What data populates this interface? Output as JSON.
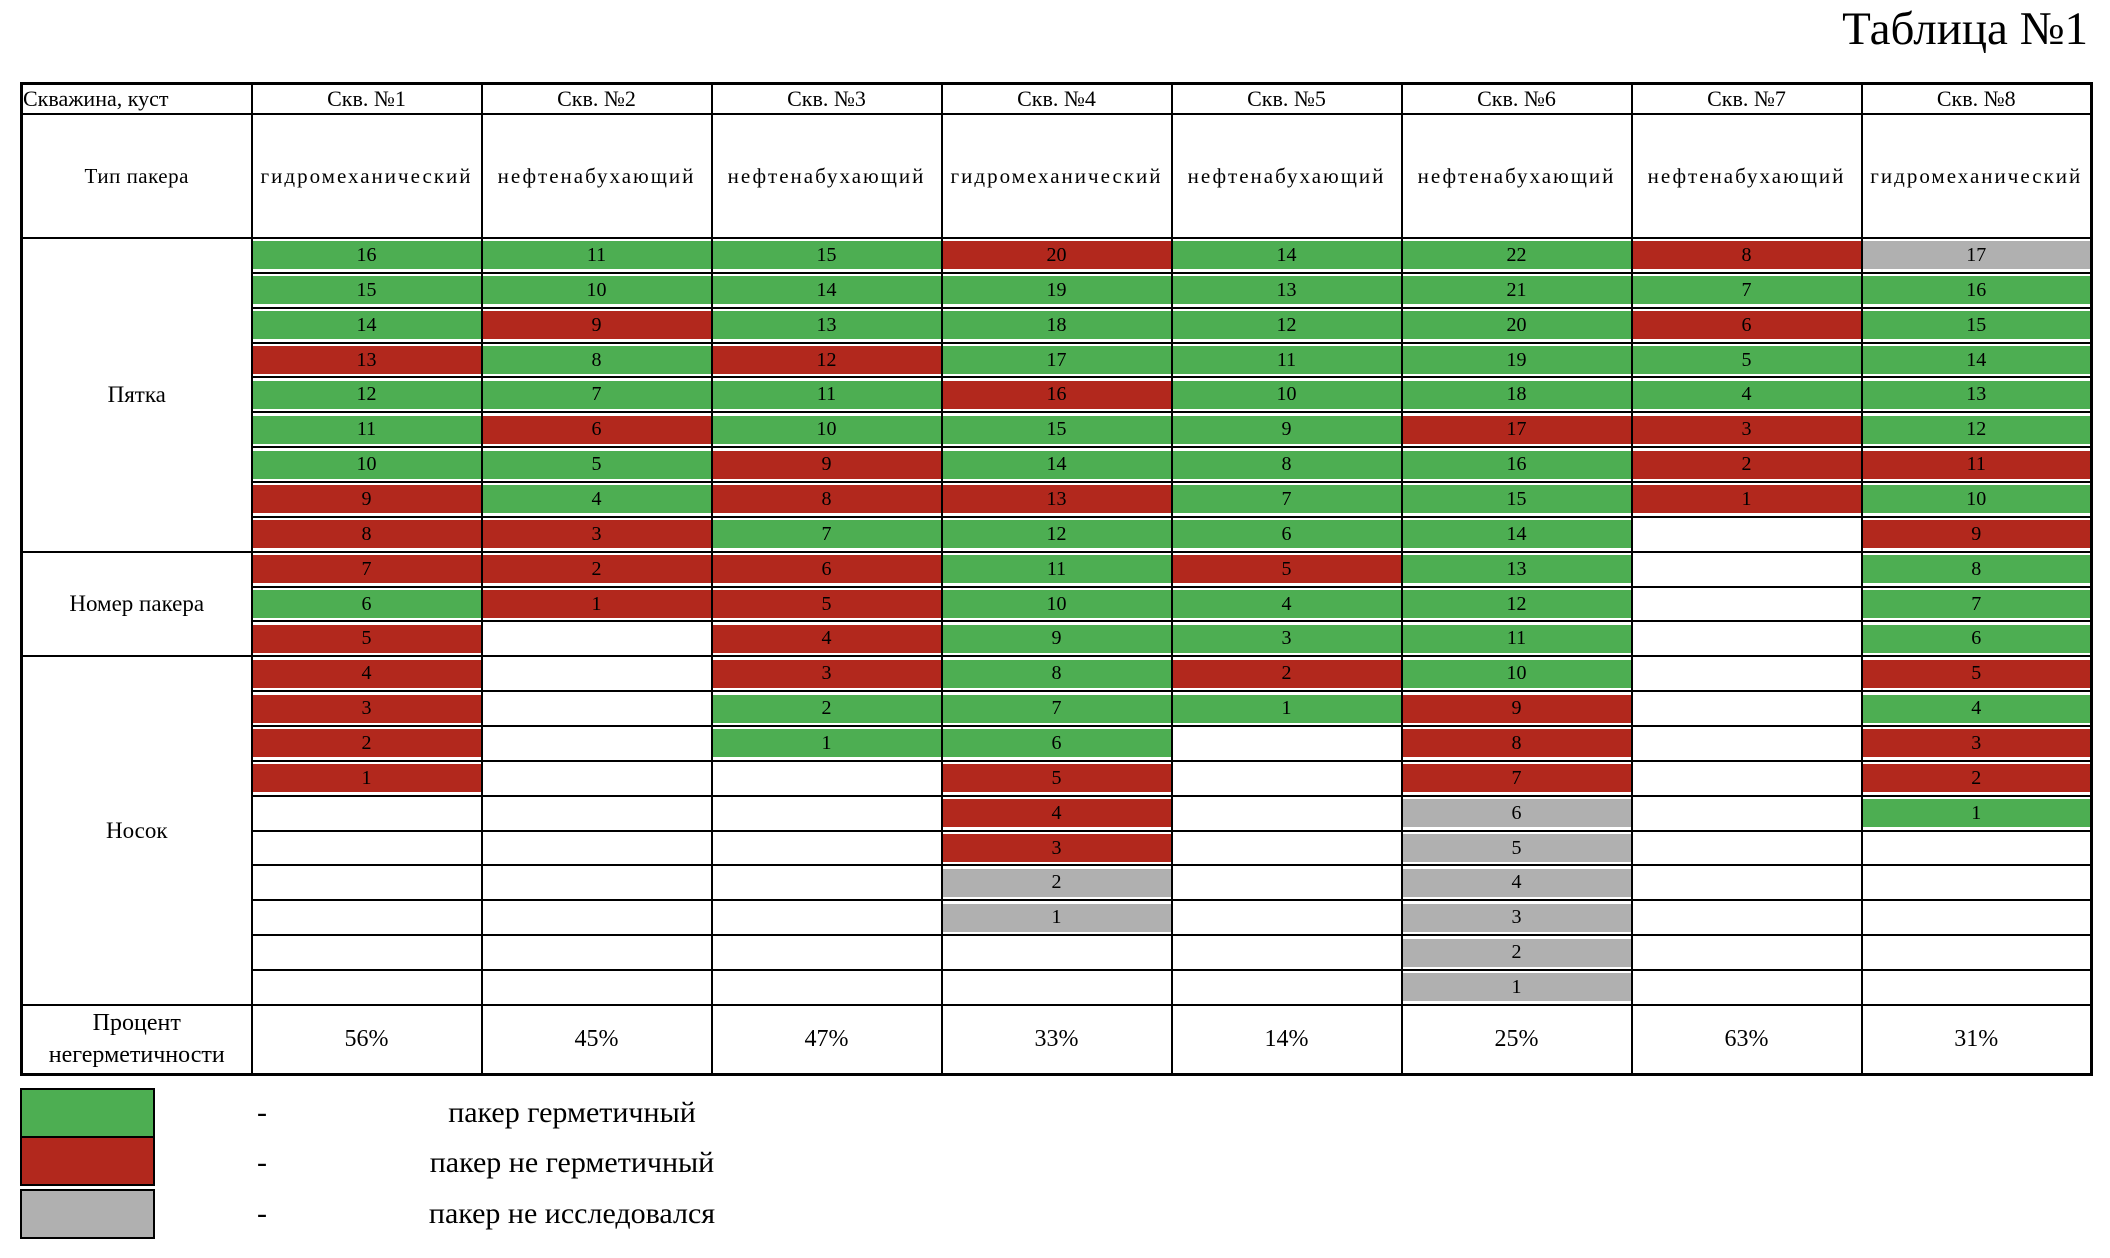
{
  "title": "Таблица №1",
  "colors": {
    "ok": "#4dae52",
    "leak": "#b2281d",
    "na": "#b0b0b0"
  },
  "table": {
    "corner_label": "Скважина, куст",
    "type_label": "Тип пакера",
    "percent_label": "Процент негерметичности",
    "num_rows": 22,
    "row_sections": [
      {
        "label": "Пятка",
        "rows": 9
      },
      {
        "label": "Номер пакера",
        "rows": 3
      },
      {
        "label": "Носок",
        "rows": 10
      }
    ],
    "wells": [
      {
        "name": "Скв. №1",
        "type": "гидромеханический",
        "percent": "56%",
        "cells": [
          [
            16,
            "ok"
          ],
          [
            15,
            "ok"
          ],
          [
            14,
            "ok"
          ],
          [
            13,
            "leak"
          ],
          [
            12,
            "ok"
          ],
          [
            11,
            "ok"
          ],
          [
            10,
            "ok"
          ],
          [
            9,
            "leak"
          ],
          [
            8,
            "leak"
          ],
          [
            7,
            "leak"
          ],
          [
            6,
            "ok"
          ],
          [
            5,
            "leak"
          ],
          [
            4,
            "leak"
          ],
          [
            3,
            "leak"
          ],
          [
            2,
            "leak"
          ],
          [
            1,
            "leak"
          ]
        ]
      },
      {
        "name": "Скв. №2",
        "type": "нефтенабухающий",
        "percent": "45%",
        "cells": [
          [
            11,
            "ok"
          ],
          [
            10,
            "ok"
          ],
          [
            9,
            "leak"
          ],
          [
            8,
            "ok"
          ],
          [
            7,
            "ok"
          ],
          [
            6,
            "leak"
          ],
          [
            5,
            "ok"
          ],
          [
            4,
            "ok"
          ],
          [
            3,
            "leak"
          ],
          [
            2,
            "leak"
          ],
          [
            1,
            "leak"
          ]
        ]
      },
      {
        "name": "Скв. №3",
        "type": "нефтенабухающий",
        "percent": "47%",
        "cells": [
          [
            15,
            "ok"
          ],
          [
            14,
            "ok"
          ],
          [
            13,
            "ok"
          ],
          [
            12,
            "leak"
          ],
          [
            11,
            "ok"
          ],
          [
            10,
            "ok"
          ],
          [
            9,
            "leak"
          ],
          [
            8,
            "leak"
          ],
          [
            7,
            "ok"
          ],
          [
            6,
            "leak"
          ],
          [
            5,
            "leak"
          ],
          [
            4,
            "leak"
          ],
          [
            3,
            "leak"
          ],
          [
            2,
            "ok"
          ],
          [
            1,
            "ok"
          ]
        ]
      },
      {
        "name": "Скв. №4",
        "type": "гидромеханический",
        "percent": "33%",
        "cells": [
          [
            20,
            "leak"
          ],
          [
            19,
            "ok"
          ],
          [
            18,
            "ok"
          ],
          [
            17,
            "ok"
          ],
          [
            16,
            "leak"
          ],
          [
            15,
            "ok"
          ],
          [
            14,
            "ok"
          ],
          [
            13,
            "leak"
          ],
          [
            12,
            "ok"
          ],
          [
            11,
            "ok"
          ],
          [
            10,
            "ok"
          ],
          [
            9,
            "ok"
          ],
          [
            8,
            "ok"
          ],
          [
            7,
            "ok"
          ],
          [
            6,
            "ok"
          ],
          [
            5,
            "leak"
          ],
          [
            4,
            "leak"
          ],
          [
            3,
            "leak"
          ],
          [
            2,
            "na"
          ],
          [
            1,
            "na"
          ]
        ]
      },
      {
        "name": "Скв. №5",
        "type": "нефтенабухающий",
        "percent": "14%",
        "cells": [
          [
            14,
            "ok"
          ],
          [
            13,
            "ok"
          ],
          [
            12,
            "ok"
          ],
          [
            11,
            "ok"
          ],
          [
            10,
            "ok"
          ],
          [
            9,
            "ok"
          ],
          [
            8,
            "ok"
          ],
          [
            7,
            "ok"
          ],
          [
            6,
            "ok"
          ],
          [
            5,
            "leak"
          ],
          [
            4,
            "ok"
          ],
          [
            3,
            "ok"
          ],
          [
            2,
            "leak"
          ],
          [
            1,
            "ok"
          ]
        ]
      },
      {
        "name": "Скв. №6",
        "type": "нефтенабухающий",
        "percent": "25%",
        "cells": [
          [
            22,
            "ok"
          ],
          [
            21,
            "ok"
          ],
          [
            20,
            "ok"
          ],
          [
            19,
            "ok"
          ],
          [
            18,
            "ok"
          ],
          [
            17,
            "leak"
          ],
          [
            16,
            "ok"
          ],
          [
            15,
            "ok"
          ],
          [
            14,
            "ok"
          ],
          [
            13,
            "ok"
          ],
          [
            12,
            "ok"
          ],
          [
            11,
            "ok"
          ],
          [
            10,
            "ok"
          ],
          [
            9,
            "leak"
          ],
          [
            8,
            "leak"
          ],
          [
            7,
            "leak"
          ],
          [
            6,
            "na"
          ],
          [
            5,
            "na"
          ],
          [
            4,
            "na"
          ],
          [
            3,
            "na"
          ],
          [
            2,
            "na"
          ],
          [
            1,
            "na"
          ]
        ]
      },
      {
        "name": "Скв. №7",
        "type": "нефтенабухающий",
        "percent": "63%",
        "cells": [
          [
            8,
            "leak"
          ],
          [
            7,
            "ok"
          ],
          [
            6,
            "leak"
          ],
          [
            5,
            "ok"
          ],
          [
            4,
            "ok"
          ],
          [
            3,
            "leak"
          ],
          [
            2,
            "leak"
          ],
          [
            1,
            "leak"
          ]
        ]
      },
      {
        "name": "Скв. №8",
        "type": "гидромеханический",
        "percent": "31%",
        "cells": [
          [
            17,
            "na"
          ],
          [
            16,
            "ok"
          ],
          [
            15,
            "ok"
          ],
          [
            14,
            "ok"
          ],
          [
            13,
            "ok"
          ],
          [
            12,
            "ok"
          ],
          [
            11,
            "leak"
          ],
          [
            10,
            "ok"
          ],
          [
            9,
            "leak"
          ],
          [
            8,
            "ok"
          ],
          [
            7,
            "ok"
          ],
          [
            6,
            "ok"
          ],
          [
            5,
            "leak"
          ],
          [
            4,
            "ok"
          ],
          [
            3,
            "leak"
          ],
          [
            2,
            "leak"
          ],
          [
            1,
            "ok"
          ]
        ]
      }
    ]
  },
  "legend": [
    {
      "status": "ok",
      "color": "#4dae52",
      "dash": "-",
      "label": "пакер герметичный"
    },
    {
      "status": "leak",
      "color": "#b2281d",
      "dash": "-",
      "label": "пакер не герметичный"
    },
    {
      "status": "na",
      "color": "#b0b0b0",
      "dash": "-",
      "label": "пакер не исследовался"
    }
  ]
}
